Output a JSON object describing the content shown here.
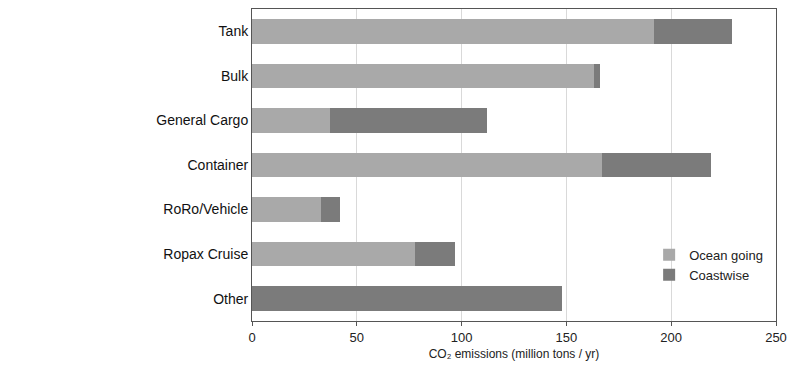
{
  "chart_data": {
    "type": "bar",
    "orientation": "horizontal",
    "stacked": true,
    "categories": [
      "Tank",
      "Bulk",
      "General Cargo",
      "Container",
      "RoRo/Vehicle",
      "Ropax Cruise",
      "Other"
    ],
    "series": [
      {
        "name": "Ocean going",
        "color": "#a9a9a9",
        "values": [
          192,
          163,
          37,
          167,
          33,
          78,
          0
        ]
      },
      {
        "name": "Coastwise",
        "color": "#7b7b7b",
        "values": [
          37,
          3,
          75,
          52,
          9,
          19,
          148
        ]
      }
    ],
    "x_label": "CO₂ emissions (million tons / yr)",
    "xlim": [
      0,
      250
    ],
    "xticks": [
      0,
      50,
      100,
      150,
      200,
      250
    ],
    "grid": true,
    "legend": "lower right"
  }
}
